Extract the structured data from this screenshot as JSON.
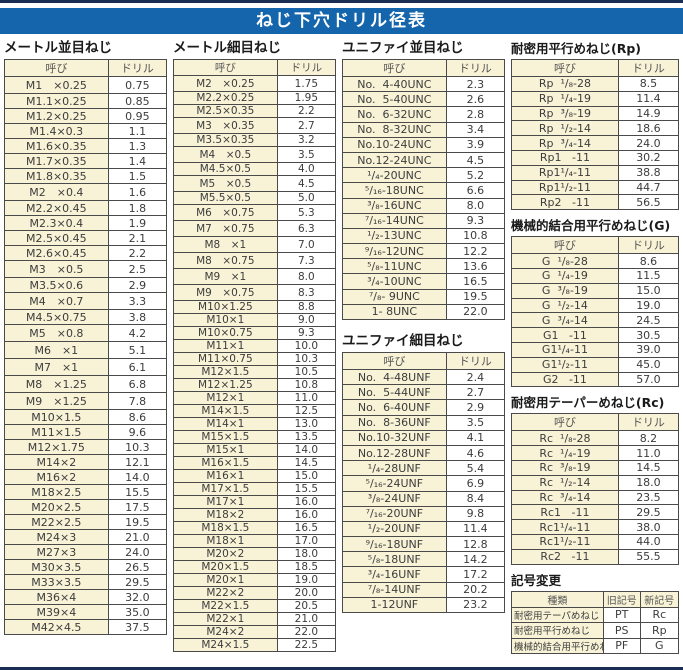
{
  "title": "ねじ下穴ドリル径表",
  "labels": {
    "name": "呼び",
    "drill": "ドリル"
  },
  "tables": [
    {
      "id": "metric-coarse",
      "title": "メートル並目ねじ",
      "rows": [
        [
          "M1　×0.25",
          "0.75"
        ],
        [
          "M1.1×0.25",
          "0.85"
        ],
        [
          "M1.2×0.25",
          "0.95"
        ],
        [
          "M1.4×0.3",
          "1.1"
        ],
        [
          "M1.6×0.35",
          "1.3"
        ],
        [
          "M1.7×0.35",
          "1.4"
        ],
        [
          "M1.8×0.35",
          "1.5"
        ],
        [
          "M2　×0.4",
          "1.6"
        ],
        [
          "M2.2×0.45",
          "1.8"
        ],
        [
          "M2.3×0.4",
          "1.9"
        ],
        [
          "M2.5×0.45",
          "2.1"
        ],
        [
          "M2.6×0.45",
          "2.2"
        ],
        [
          "M3　×0.5",
          "2.5"
        ],
        [
          "M3.5×0.6",
          "2.9"
        ],
        [
          "M4　×0.7",
          "3.3"
        ],
        [
          "M4.5×0.75",
          "3.8"
        ],
        [
          "M5　×0.8",
          "4.2"
        ],
        [
          "M6　×1",
          "5.1"
        ],
        [
          "M7　×1",
          "6.1"
        ],
        [
          "M8　×1.25",
          "6.8"
        ],
        [
          "M9　×1.25",
          "7.8"
        ],
        [
          "M10×1.5",
          "8.6"
        ],
        [
          "M11×1.5",
          "9.6"
        ],
        [
          "M12×1.75",
          "10.3"
        ],
        [
          "M14×2",
          "12.1"
        ],
        [
          "M16×2",
          "14.0"
        ],
        [
          "M18×2.5",
          "15.5"
        ],
        [
          "M20×2.5",
          "17.5"
        ],
        [
          "M22×2.5",
          "19.5"
        ],
        [
          "M24×3",
          "21.0"
        ],
        [
          "M27×3",
          "24.0"
        ],
        [
          "M30×3.5",
          "26.5"
        ],
        [
          "M33×3.5",
          "29.5"
        ],
        [
          "M36×4",
          "32.0"
        ],
        [
          "M39×4",
          "35.0"
        ],
        [
          "M42×4.5",
          "37.5"
        ]
      ]
    },
    {
      "id": "metric-fine",
      "title": "メートル細目ねじ",
      "rows": [
        [
          "M2　×0.25",
          "1.75"
        ],
        [
          "M2.2×0.25",
          "1.95"
        ],
        [
          "M2.5×0.35",
          "2.2"
        ],
        [
          "M3　×0.35",
          "2.7"
        ],
        [
          "M3.5×0.35",
          "3.2"
        ],
        [
          "M4　×0.5",
          "3.5"
        ],
        [
          "M4.5×0.5",
          "4.0"
        ],
        [
          "M5　×0.5",
          "4.5"
        ],
        [
          "M5.5×0.5",
          "5.0"
        ],
        [
          "M6　×0.75",
          "5.3"
        ],
        [
          "M7　×0.75",
          "6.3"
        ],
        [
          "M8　×1",
          "7.0"
        ],
        [
          "M8　×0.75",
          "7.3"
        ],
        [
          "M9　×1",
          "8.0"
        ],
        [
          "M9　×0.75",
          "8.3"
        ],
        [
          "M10×1.25",
          "8.8"
        ],
        [
          "M10×1",
          "9.0"
        ],
        [
          "M10×0.75",
          "9.3"
        ],
        [
          "M11×1",
          "10.0"
        ],
        [
          "M11×0.75",
          "10.3"
        ],
        [
          "M12×1.5",
          "10.5"
        ],
        [
          "M12×1.25",
          "10.8"
        ],
        [
          "M12×1",
          "11.0"
        ],
        [
          "M14×1.5",
          "12.5"
        ],
        [
          "M14×1",
          "13.0"
        ],
        [
          "M15×1.5",
          "13.5"
        ],
        [
          "M15×1",
          "14.0"
        ],
        [
          "M16×1.5",
          "14.5"
        ],
        [
          "M16×1",
          "15.0"
        ],
        [
          "M17×1.5",
          "15.5"
        ],
        [
          "M17×1",
          "16.0"
        ],
        [
          "M18×2",
          "16.0"
        ],
        [
          "M18×1.5",
          "16.5"
        ],
        [
          "M18×1",
          "17.0"
        ],
        [
          "M20×2",
          "18.0"
        ],
        [
          "M20×1.5",
          "18.5"
        ],
        [
          "M20×1",
          "19.0"
        ],
        [
          "M22×2",
          "20.0"
        ],
        [
          "M22×1.5",
          "20.5"
        ],
        [
          "M22×1",
          "21.0"
        ],
        [
          "M24×2",
          "22.0"
        ],
        [
          "M24×1.5",
          "22.5"
        ]
      ]
    },
    {
      "id": "unified-coarse",
      "title": "ユニファイ並目ねじ",
      "rows": [
        [
          "No.  4-40UNC",
          "2.3"
        ],
        [
          "No.  5-40UNC",
          "2.6"
        ],
        [
          "No.  6-32UNC",
          "2.8"
        ],
        [
          "No.  8-32UNC",
          "3.4"
        ],
        [
          "No.10-24UNC",
          "3.9"
        ],
        [
          "No.12-24UNC",
          "4.5"
        ],
        [
          "¹/₄-20UNC",
          "5.2"
        ],
        [
          "⁵/₁₆-18UNC",
          "6.6"
        ],
        [
          "³/₈-16UNC",
          "8.0"
        ],
        [
          "⁷/₁₆-14UNC",
          "9.3"
        ],
        [
          "¹/₂-13UNC",
          "10.8"
        ],
        [
          "⁹/₁₆-12UNC",
          "12.2"
        ],
        [
          "⁵/₈-11UNC",
          "13.6"
        ],
        [
          "³/₄-10UNC",
          "16.5"
        ],
        [
          "⁷/₈- 9UNC",
          "19.5"
        ],
        [
          "1- 8UNC",
          "22.0"
        ]
      ]
    },
    {
      "id": "unified-fine",
      "title": "ユニファイ細目ねじ",
      "rows": [
        [
          "No.  4-48UNF",
          "2.4"
        ],
        [
          "No.  5-44UNF",
          "2.7"
        ],
        [
          "No.  6-40UNF",
          "2.9"
        ],
        [
          "No.  8-36UNF",
          "3.5"
        ],
        [
          "No.10-32UNF",
          "4.1"
        ],
        [
          "No.12-28UNF",
          "4.6"
        ],
        [
          "¹/₄-28UNF",
          "5.4"
        ],
        [
          "⁵/₁₆-24UNF",
          "6.9"
        ],
        [
          "³/₈-24UNF",
          "8.4"
        ],
        [
          "⁷/₁₆-20UNF",
          "9.8"
        ],
        [
          "¹/₂-20UNF",
          "11.4"
        ],
        [
          "⁹/₁₆-18UNF",
          "12.8"
        ],
        [
          "⁵/₈-18UNF",
          "14.2"
        ],
        [
          "³/₄-16UNF",
          "17.2"
        ],
        [
          "⁷/₈-14UNF",
          "20.2"
        ],
        [
          "1-12UNF",
          "23.2"
        ]
      ]
    },
    {
      "id": "rp-thread",
      "title": "耐密用平行めねじ(Rp)",
      "rows": [
        [
          "Rp  ¹/₈-28",
          "8.5"
        ],
        [
          "Rp  ¹/₄-19",
          "11.4"
        ],
        [
          "Rp  ³/₈-19",
          "14.9"
        ],
        [
          "Rp  ¹/₂-14",
          "18.6"
        ],
        [
          "Rp  ³/₄-14",
          "24.0"
        ],
        [
          "Rp1   -11",
          "30.2"
        ],
        [
          "Rp1¹/₄-11",
          "38.8"
        ],
        [
          "Rp1¹/₂-11",
          "44.7"
        ],
        [
          "Rp2   -11",
          "56.5"
        ]
      ]
    },
    {
      "id": "g-thread",
      "title": "機械的結合用平行めねじ(G)",
      "rows": [
        [
          "G  ¹/₈-28",
          "8.6"
        ],
        [
          "G  ¹/₄-19",
          "11.5"
        ],
        [
          "G  ³/₈-19",
          "15.0"
        ],
        [
          "G  ¹/₂-14",
          "19.0"
        ],
        [
          "G  ³/₄-14",
          "24.5"
        ],
        [
          "G1   -11",
          "30.5"
        ],
        [
          "G1¹/₄-11",
          "39.0"
        ],
        [
          "G1¹/₂-11",
          "45.0"
        ],
        [
          "G2   -11",
          "57.0"
        ]
      ]
    },
    {
      "id": "rc-thread",
      "title": "耐密用テーパーめねじ(Rc)",
      "rows": [
        [
          "Rc  ¹/₈-28",
          "8.2"
        ],
        [
          "Rc  ¹/₄-19",
          "11.0"
        ],
        [
          "Rc  ³/₈-19",
          "14.5"
        ],
        [
          "Rc  ¹/₂-14",
          "18.0"
        ],
        [
          "Rc  ³/₄-14",
          "23.5"
        ],
        [
          "Rc1   -11",
          "29.5"
        ],
        [
          "Rc1¹/₄-11",
          "38.0"
        ],
        [
          "Rc1¹/₂-11",
          "44.0"
        ],
        [
          "Rc2   -11",
          "55.5"
        ]
      ]
    }
  ],
  "symbol_table": {
    "title": "記号変更",
    "headers": {
      "kind": "種類",
      "old": "旧記号",
      "new": "新記号"
    },
    "rows": [
      [
        "耐密用テーパめねじ",
        "PT",
        "Rc"
      ],
      [
        "耐密用平行めねじ",
        "PS",
        "Rp"
      ],
      [
        "機械的結合用平行めねじ",
        "PF",
        "G"
      ]
    ]
  },
  "colors": {
    "title_bar": "#1565ac",
    "frame_line": "#1b2d52",
    "cell_cream": "#f8f3d6",
    "cell_border": "#4a4a4a"
  }
}
